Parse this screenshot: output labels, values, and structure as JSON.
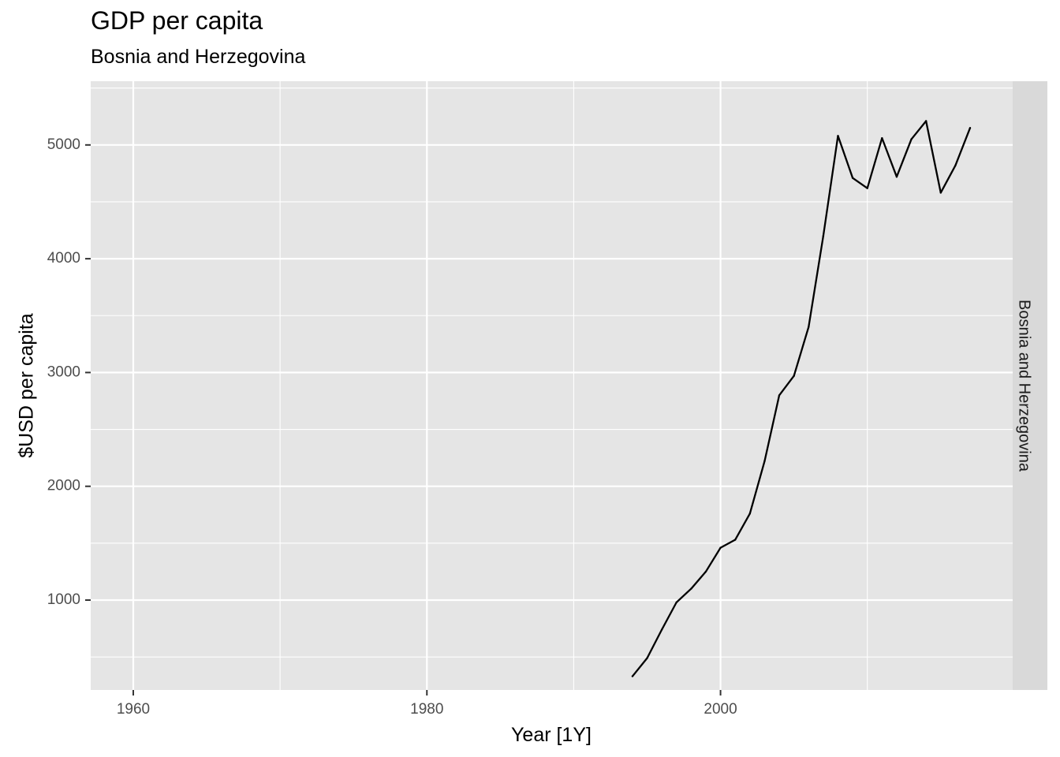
{
  "chart_data": {
    "type": "line",
    "title": "GDP per capita",
    "subtitle": "Bosnia and Herzegovina",
    "xlabel": "Year [1Y]",
    "ylabel": "$USD per capita",
    "facet_label": "Bosnia and Herzegovina",
    "xlim": [
      1957.1,
      2019.9
    ],
    "ylim": [
      210,
      5560
    ],
    "x_ticks": [
      1960,
      1980,
      2000
    ],
    "y_ticks": [
      1000,
      2000,
      3000,
      4000,
      5000
    ],
    "grid": true,
    "background": "#e5e5e5",
    "strip_color": "#d9d9d9",
    "line_color": "#000000",
    "series": [
      {
        "x": [
          1994,
          1995,
          1996,
          1997,
          1998,
          1999,
          2000,
          2001,
          2002,
          2003,
          2004,
          2005,
          2006,
          2007,
          2008,
          2009,
          2010,
          2011,
          2012,
          2013,
          2014,
          2015,
          2016,
          2017
        ],
        "y": [
          330,
          490,
          740,
          980,
          1100,
          1250,
          1460,
          1530,
          1760,
          2220,
          2800,
          2970,
          3400,
          4200,
          5080,
          4710,
          4620,
          5060,
          4720,
          5050,
          5210,
          4580,
          4820,
          5150
        ]
      }
    ]
  }
}
